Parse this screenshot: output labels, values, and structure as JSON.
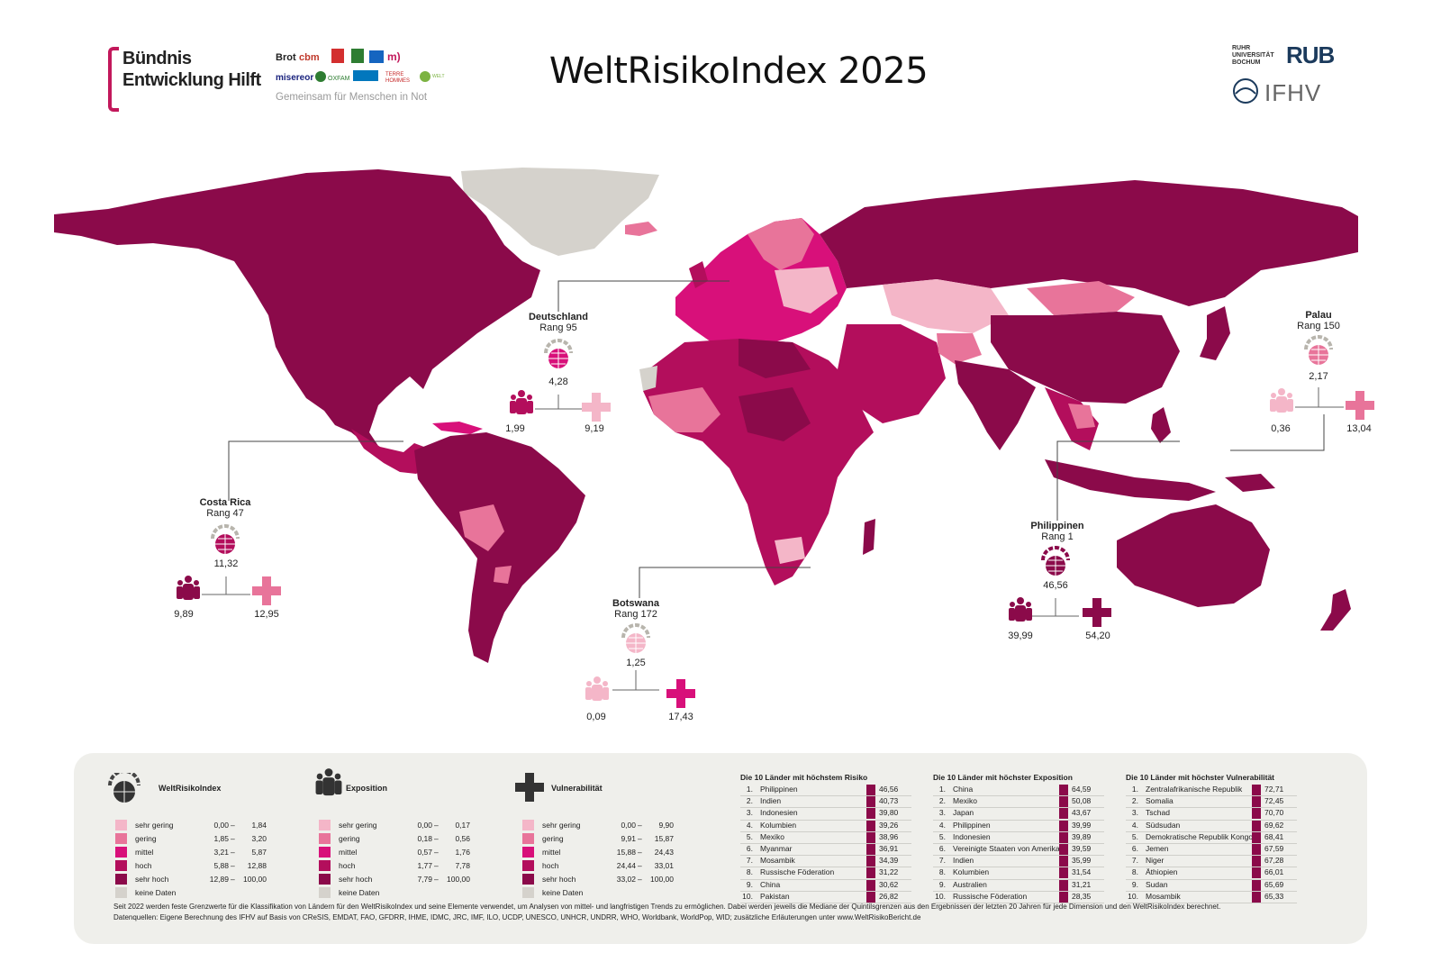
{
  "header": {
    "title": "WeltRisikoIndex 2025",
    "buendnis_line1": "Bündnis",
    "buendnis_line2": "Entwicklung Hilft",
    "tagline": "Gemeinsam für Menschen in Not",
    "partner_logos": [
      "Brot für die Welt",
      "cbm",
      "DAHW",
      "medico",
      "misereor",
      "OXFAM",
      "PLAN",
      "TERRE DES HOMMES",
      "WELT HUNGER HILFE"
    ],
    "rub_small": "RUHR UNIVERSITÄT BOCHUM",
    "rub": "RUB",
    "ifhv": "IFHV"
  },
  "colors": {
    "sehr_gering": "#f4b6c8",
    "gering": "#e8749a",
    "mittel": "#d8107a",
    "hoch": "#b30e5c",
    "sehr_hoch": "#8b0a4a",
    "keine_daten": "#d5d2cc"
  },
  "callouts": {
    "deutschland": {
      "name": "Deutschland",
      "rank": "Rang 95",
      "index": "4,28",
      "exposition": "1,99",
      "vulnerabilitaet": "9,19"
    },
    "costa_rica": {
      "name": "Costa Rica",
      "rank": "Rang 47",
      "index": "11,32",
      "exposition": "9,89",
      "vulnerabilitaet": "12,95"
    },
    "botswana": {
      "name": "Botswana",
      "rank": "Rang 172",
      "index": "1,25",
      "exposition": "0,09",
      "vulnerabilitaet": "17,43"
    },
    "philippinen": {
      "name": "Philippinen",
      "rank": "Rang 1",
      "index": "46,56",
      "exposition": "39,99",
      "vulnerabilitaet": "54,20"
    },
    "palau": {
      "name": "Palau",
      "rank": "Rang 150",
      "index": "2,17",
      "exposition": "0,36",
      "vulnerabilitaet": "13,04"
    }
  },
  "legend": {
    "weltrisiko": {
      "title": "WeltRisikoIndex",
      "rows": [
        {
          "label": "sehr gering",
          "from": "0,00",
          "to": "1,84"
        },
        {
          "label": "gering",
          "from": "1,85",
          "to": "3,20"
        },
        {
          "label": "mittel",
          "from": "3,21",
          "to": "5,87"
        },
        {
          "label": "hoch",
          "from": "5,88",
          "to": "12,88"
        },
        {
          "label": "sehr hoch",
          "from": "12,89",
          "to": "100,00"
        }
      ]
    },
    "exposition": {
      "title": "Exposition",
      "rows": [
        {
          "label": "sehr gering",
          "from": "0,00",
          "to": "0,17"
        },
        {
          "label": "gering",
          "from": "0,18",
          "to": "0,56"
        },
        {
          "label": "mittel",
          "from": "0,57",
          "to": "1,76"
        },
        {
          "label": "hoch",
          "from": "1,77",
          "to": "7,78"
        },
        {
          "label": "sehr hoch",
          "from": "7,79",
          "to": "100,00"
        }
      ]
    },
    "vulnerabilitaet": {
      "title": "Vulnerabilität",
      "rows": [
        {
          "label": "sehr gering",
          "from": "0,00",
          "to": "9,90"
        },
        {
          "label": "gering",
          "from": "9,91",
          "to": "15,87"
        },
        {
          "label": "mittel",
          "from": "15,88",
          "to": "24,43"
        },
        {
          "label": "hoch",
          "from": "24,44",
          "to": "33,01"
        },
        {
          "label": "sehr hoch",
          "from": "33,02",
          "to": "100,00"
        }
      ]
    },
    "keine_daten": "keine Daten",
    "dash": "–"
  },
  "top10": {
    "risiko": {
      "title": "Die 10 Länder mit höchstem Risiko",
      "rows": [
        [
          "1.",
          "Philippinen",
          "46,56"
        ],
        [
          "2.",
          "Indien",
          "40,73"
        ],
        [
          "3.",
          "Indonesien",
          "39,80"
        ],
        [
          "4.",
          "Kolumbien",
          "39,26"
        ],
        [
          "5.",
          "Mexiko",
          "38,96"
        ],
        [
          "6.",
          "Myanmar",
          "36,91"
        ],
        [
          "7.",
          "Mosambik",
          "34,39"
        ],
        [
          "8.",
          "Russische Föderation",
          "31,22"
        ],
        [
          "9.",
          "China",
          "30,62"
        ],
        [
          "10.",
          "Pakistan",
          "26,82"
        ]
      ]
    },
    "exposition": {
      "title": "Die 10 Länder mit höchster Exposition",
      "rows": [
        [
          "1.",
          "China",
          "64,59"
        ],
        [
          "2.",
          "Mexiko",
          "50,08"
        ],
        [
          "3.",
          "Japan",
          "43,67"
        ],
        [
          "4.",
          "Philippinen",
          "39,99"
        ],
        [
          "5.",
          "Indonesien",
          "39,89"
        ],
        [
          "6.",
          "Vereinigte Staaten von Amerika",
          "39,59"
        ],
        [
          "7.",
          "Indien",
          "35,99"
        ],
        [
          "8.",
          "Kolumbien",
          "31,54"
        ],
        [
          "9.",
          "Australien",
          "31,21"
        ],
        [
          "10.",
          "Russische Föderation",
          "28,35"
        ]
      ]
    },
    "vulnerabilitaet": {
      "title": "Die 10 Länder mit höchster Vulnerabilität",
      "rows": [
        [
          "1.",
          "Zentralafrikanische Republik",
          "72,71"
        ],
        [
          "2.",
          "Somalia",
          "72,45"
        ],
        [
          "3.",
          "Tschad",
          "70,70"
        ],
        [
          "4.",
          "Südsudan",
          "69,62"
        ],
        [
          "5.",
          "Demokratische Republik Kongo",
          "68,41"
        ],
        [
          "6.",
          "Jemen",
          "67,59"
        ],
        [
          "7.",
          "Niger",
          "67,28"
        ],
        [
          "8.",
          "Äthiopien",
          "66,01"
        ],
        [
          "9.",
          "Sudan",
          "65,69"
        ],
        [
          "10.",
          "Mosambik",
          "65,33"
        ]
      ]
    }
  },
  "footnote1": "Seit 2022 werden feste Grenzwerte für die Klassifikation von Ländern für den WeltRisikoIndex und seine Elemente verwendet, um Analysen von mittel- und langfristigen Trends zu ermöglichen. Dabei werden jeweils die Mediane der Quintilsgrenzen aus den Ergebnissen der letzten 20 Jahren für jede Dimension und den WeltRisikoIndex berechnet.",
  "footnote2": "Datenquellen: Eigene Berechnung des IFHV auf Basis von CReSIS, EMDAT, FAO, GFDRR, IHME, IDMC, JRC, IMF, ILO, UCDP, UNESCO, UNHCR, UNDRR, WHO, Worldbank, WorldPop, WID; zusätzliche Erläuterungen unter www.WeltRisikoBericht.de"
}
